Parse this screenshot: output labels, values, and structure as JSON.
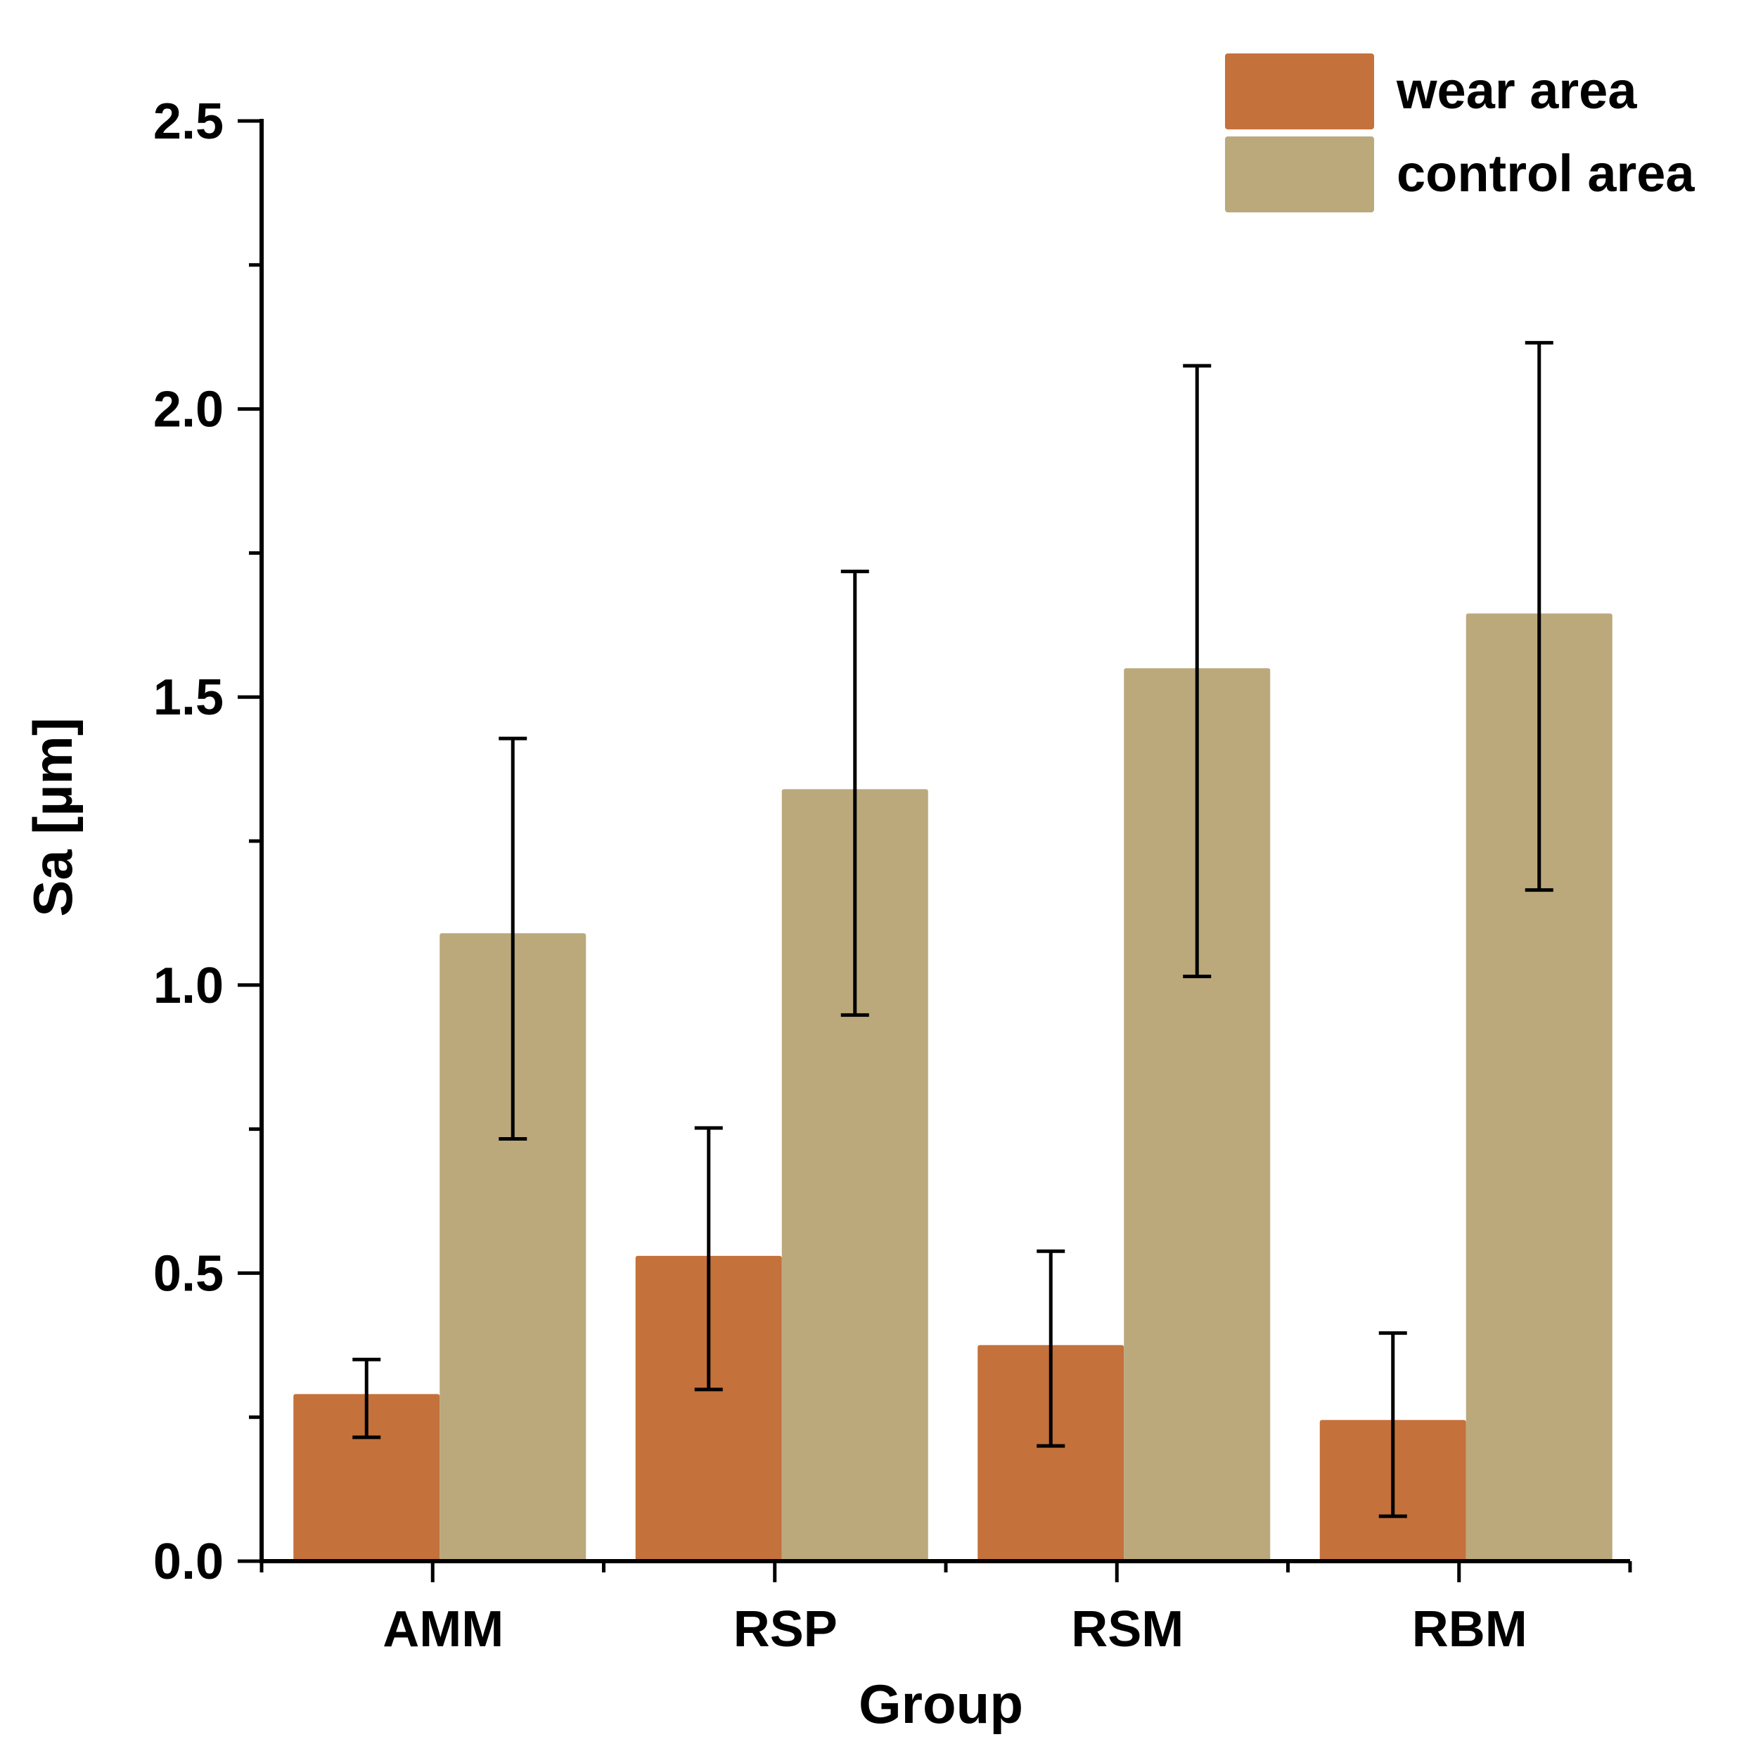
{
  "chart_data": {
    "type": "bar",
    "title": "",
    "xlabel": "Group",
    "ylabel": "Sa [µm]",
    "ylim": [
      0,
      2.5
    ],
    "yticks": [
      "0.0",
      "0.5",
      "1.0",
      "1.5",
      "2.0",
      "2.5"
    ],
    "categories": [
      "AMM",
      "RSP",
      "RSM",
      "RBM"
    ],
    "legend_position": "top-right",
    "series": [
      {
        "name": "wear area",
        "color": "#C4713B",
        "values": [
          0.29,
          0.53,
          0.375,
          0.245
        ],
        "error_low": [
          0.215,
          0.298,
          0.2,
          0.078
        ],
        "error_high": [
          0.35,
          0.752,
          0.538,
          0.396
        ]
      },
      {
        "name": "control area",
        "color": "#BBA97C",
        "values": [
          1.09,
          1.34,
          1.55,
          1.645
        ],
        "error_low": [
          0.733,
          0.948,
          1.015,
          1.165
        ],
        "error_high": [
          1.428,
          1.718,
          2.075,
          2.115
        ]
      }
    ]
  }
}
